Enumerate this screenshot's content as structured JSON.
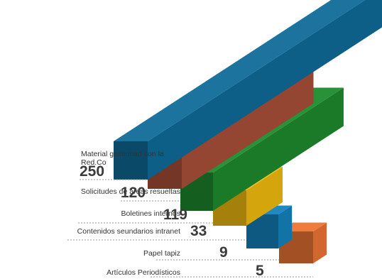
{
  "chart_data": {
    "type": "bar",
    "categories": [
      "Material gestionad con la Red.Co",
      "Solicitudes de áreas resueltas",
      "Boletines internos",
      "Contenidos seundarios intranet",
      "Papel tapiz",
      "Artículos Periodísticos"
    ],
    "values": [
      250,
      120,
      119,
      33,
      9,
      5
    ],
    "value_labels": [
      "250",
      "120",
      "119",
      "33",
      "9",
      "5"
    ],
    "series_colors": [
      "#0F6C99",
      "#A9503A",
      "#1E8B2E",
      "#F2BC10",
      "#1483BD",
      "#EE7535"
    ],
    "legend": "none",
    "grid": false
  }
}
